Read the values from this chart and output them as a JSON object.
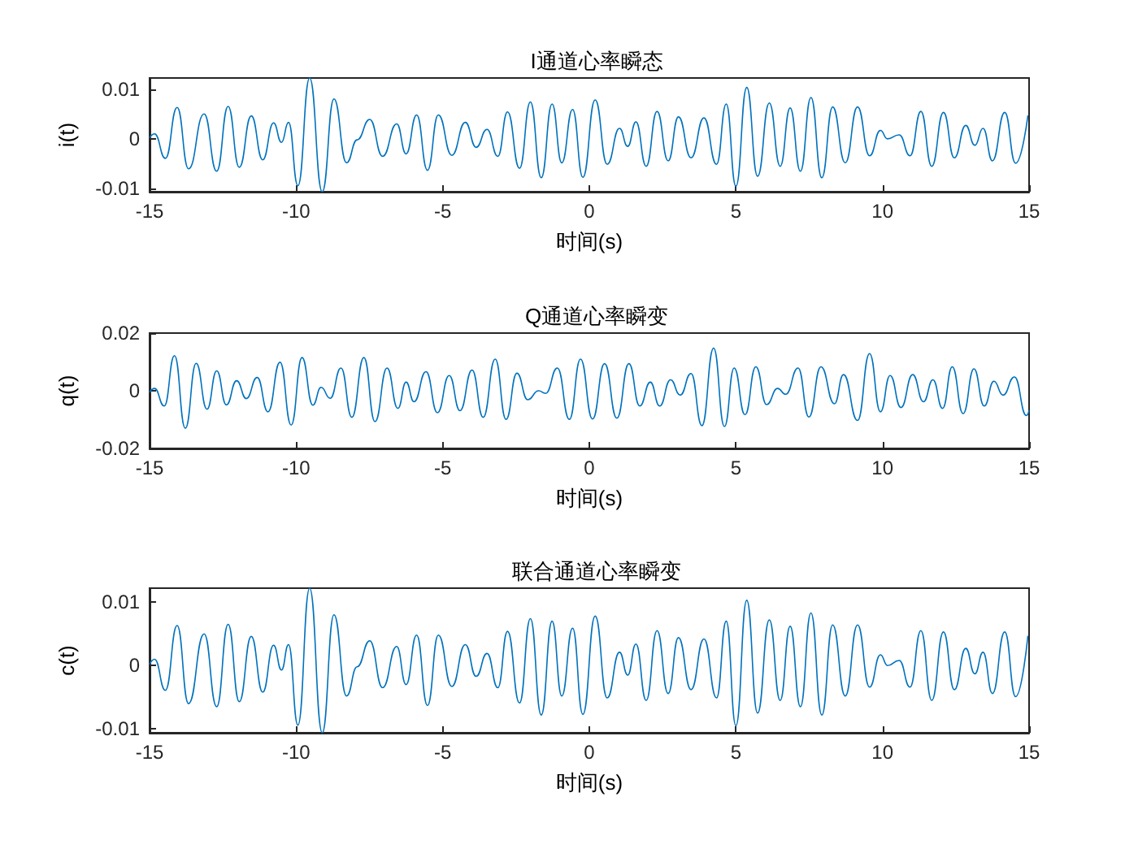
{
  "chart_data": [
    {
      "type": "line",
      "title": "I通道心率瞬态",
      "xlabel": "时间(s)",
      "ylabel": "i(t)",
      "xlim": [
        -15,
        15
      ],
      "xticks": [
        -15,
        -10,
        -5,
        0,
        5,
        10,
        15
      ],
      "ylim": [
        -0.0106,
        0.0122
      ],
      "yticks": [
        -0.01,
        0,
        0.01
      ],
      "grid": false,
      "series": [
        {
          "color": "#0072bd",
          "x": [
            -15.0,
            -14.83,
            -14.46,
            -14.06,
            -13.67,
            -13.14,
            -12.71,
            -12.32,
            -11.94,
            -11.53,
            -11.14,
            -10.77,
            -10.5,
            -10.26,
            -9.94,
            -9.54,
            -9.11,
            -8.71,
            -8.28,
            -7.92,
            -7.49,
            -7.05,
            -6.57,
            -6.25,
            -5.89,
            -5.52,
            -5.15,
            -4.69,
            -4.23,
            -3.86,
            -3.49,
            -3.12,
            -2.79,
            -2.38,
            -2.01,
            -1.64,
            -1.27,
            -0.94,
            -0.57,
            -0.22,
            0.2,
            0.61,
            1.03,
            1.31,
            1.59,
            1.94,
            2.31,
            2.69,
            3.04,
            3.47,
            3.91,
            4.34,
            4.67,
            5.0,
            5.37,
            5.74,
            6.14,
            6.51,
            6.85,
            7.2,
            7.56,
            7.93,
            8.3,
            8.73,
            9.15,
            9.56,
            9.93,
            10.17,
            10.57,
            10.94,
            11.31,
            11.68,
            12.08,
            12.45,
            12.84,
            13.15,
            13.43,
            13.75,
            14.17,
            14.54,
            14.96
          ],
          "values": [
            0.0002,
            0.001,
            -0.0039,
            0.0063,
            -0.006,
            0.005,
            -0.0065,
            0.0065,
            -0.0057,
            0.0046,
            -0.0042,
            0.0032,
            -0.0007,
            0.0033,
            -0.0094,
            0.0122,
            -0.0106,
            0.008,
            -0.0048,
            -0.0002,
            0.0039,
            -0.0035,
            0.003,
            -0.003,
            0.0048,
            -0.0063,
            0.0048,
            -0.0033,
            0.0033,
            -0.0017,
            0.0019,
            -0.0035,
            0.0054,
            -0.0059,
            0.0074,
            -0.0078,
            0.007,
            -0.0048,
            0.0059,
            -0.0077,
            0.0078,
            -0.0051,
            0.0021,
            -0.0015,
            0.0034,
            -0.0055,
            0.0055,
            -0.0044,
            0.0044,
            -0.0038,
            0.0042,
            -0.0051,
            0.007,
            -0.0095,
            0.0103,
            -0.0075,
            0.0072,
            -0.0055,
            0.0062,
            -0.0065,
            0.0083,
            -0.0078,
            0.0064,
            -0.0048,
            0.0064,
            -0.0034,
            0.0017,
            0,
            0.0008,
            -0.0034,
            0.0055,
            -0.0055,
            0.0053,
            -0.0038,
            0.0027,
            -0.0013,
            0.0021,
            -0.0044,
            0.0053,
            -0.0049,
            0.0047
          ]
        }
      ]
    },
    {
      "type": "line",
      "title": "Q通道心率瞬变",
      "xlabel": "时间(s)",
      "ylabel": "q(t)",
      "xlim": [
        -15,
        15
      ],
      "xticks": [
        -15,
        -10,
        -5,
        0,
        5,
        10,
        15
      ],
      "ylim": [
        -0.02,
        0.02
      ],
      "yticks": [
        -0.02,
        0,
        0.02
      ],
      "grid": false,
      "series": [
        {
          "color": "#0072bd",
          "x": [
            -15.0,
            -14.83,
            -14.5,
            -14.15,
            -13.78,
            -13.41,
            -13.04,
            -12.71,
            -12.38,
            -12.03,
            -11.7,
            -11.33,
            -10.96,
            -10.55,
            -10.17,
            -9.8,
            -9.43,
            -9.15,
            -8.84,
            -8.47,
            -8.1,
            -7.69,
            -7.31,
            -6.9,
            -6.53,
            -6.25,
            -5.98,
            -5.57,
            -5.18,
            -4.78,
            -4.41,
            -4.0,
            -3.62,
            -3.21,
            -2.84,
            -2.47,
            -2.1,
            -1.73,
            -1.49,
            -1.09,
            -0.68,
            -0.3,
            0.11,
            0.52,
            0.94,
            1.35,
            1.72,
            2.08,
            2.4,
            2.77,
            3.1,
            3.47,
            3.84,
            4.24,
            4.61,
            4.94,
            5.31,
            5.68,
            6.05,
            6.42,
            6.7,
            7.12,
            7.49,
            7.9,
            8.36,
            8.67,
            9.15,
            9.56,
            9.93,
            10.26,
            10.63,
            11.03,
            11.4,
            11.72,
            12.05,
            12.38,
            12.75,
            13.12,
            13.47,
            13.8,
            14.11,
            14.5,
            14.91,
            15.0
          ],
          "values": [
            -0.0005,
            0.0008,
            -0.0053,
            0.0122,
            -0.013,
            0.0095,
            -0.0064,
            0.0069,
            -0.0049,
            0.0035,
            -0.0027,
            0.0046,
            -0.0073,
            0.0099,
            -0.0119,
            0.0115,
            -0.005,
            0.0012,
            -0.0026,
            0.0079,
            -0.0092,
            0.0115,
            -0.0107,
            0.0079,
            -0.0061,
            0.003,
            -0.0038,
            0.0066,
            -0.0076,
            0.0053,
            -0.0069,
            0.0072,
            -0.0092,
            0.011,
            -0.0099,
            0.0061,
            -0.0031,
            0,
            -0.0009,
            0.0079,
            -0.0099,
            0.011,
            -0.0098,
            0.0094,
            -0.0095,
            0.0094,
            -0.0053,
            0.003,
            -0.0053,
            0.0038,
            -0.0015,
            0.006,
            -0.0121,
            0.0148,
            -0.0124,
            0.0079,
            -0.0083,
            0.0083,
            -0.0048,
            0.0008,
            -0.0012,
            0.0079,
            -0.0091,
            0.0083,
            -0.0045,
            0.0056,
            -0.0103,
            0.0129,
            -0.0073,
            0.0053,
            -0.0058,
            0.0056,
            -0.0038,
            0.0038,
            -0.0061,
            0.0083,
            -0.0079,
            0.0076,
            -0.0053,
            0.0033,
            -0.0015,
            0.0048,
            -0.0086,
            -0.0068
          ]
        }
      ]
    },
    {
      "type": "line",
      "title": "联合通道心率瞬变",
      "xlabel": "时间(s)",
      "ylabel": "c(t)",
      "xlim": [
        -15,
        15
      ],
      "xticks": [
        -15,
        -10,
        -5,
        0,
        5,
        10,
        15
      ],
      "ylim": [
        -0.0106,
        0.0122
      ],
      "yticks": [
        -0.01,
        0,
        0.01
      ],
      "grid": false,
      "series": [
        {
          "color": "#0072bd",
          "x": [
            -15.0,
            -14.83,
            -14.46,
            -14.06,
            -13.67,
            -13.14,
            -12.71,
            -12.32,
            -11.94,
            -11.53,
            -11.14,
            -10.77,
            -10.5,
            -10.26,
            -9.94,
            -9.54,
            -9.11,
            -8.71,
            -8.28,
            -7.92,
            -7.49,
            -7.05,
            -6.57,
            -6.25,
            -5.89,
            -5.52,
            -5.15,
            -4.69,
            -4.23,
            -3.86,
            -3.49,
            -3.12,
            -2.79,
            -2.38,
            -2.01,
            -1.64,
            -1.27,
            -0.94,
            -0.57,
            -0.22,
            0.2,
            0.61,
            1.03,
            1.31,
            1.59,
            1.94,
            2.31,
            2.69,
            3.04,
            3.47,
            3.91,
            4.34,
            4.67,
            5.0,
            5.37,
            5.74,
            6.14,
            6.51,
            6.85,
            7.2,
            7.56,
            7.93,
            8.3,
            8.73,
            9.15,
            9.56,
            9.93,
            10.17,
            10.57,
            10.94,
            11.31,
            11.68,
            12.08,
            12.45,
            12.84,
            13.15,
            13.43,
            13.75,
            14.17,
            14.54,
            14.96
          ],
          "values": [
            0.0002,
            0.001,
            -0.0039,
            0.0063,
            -0.006,
            0.005,
            -0.0065,
            0.0065,
            -0.0057,
            0.0046,
            -0.0042,
            0.0032,
            -0.0007,
            0.0033,
            -0.0094,
            0.0122,
            -0.0106,
            0.008,
            -0.0048,
            -0.0002,
            0.0039,
            -0.0035,
            0.003,
            -0.003,
            0.0048,
            -0.0063,
            0.0048,
            -0.0033,
            0.0033,
            -0.0017,
            0.0019,
            -0.0035,
            0.0054,
            -0.0059,
            0.0074,
            -0.0078,
            0.007,
            -0.0048,
            0.0059,
            -0.0077,
            0.0078,
            -0.0051,
            0.0021,
            -0.0015,
            0.0034,
            -0.0055,
            0.0055,
            -0.0044,
            0.0044,
            -0.0038,
            0.0042,
            -0.0051,
            0.007,
            -0.0095,
            0.0103,
            -0.0075,
            0.0072,
            -0.0055,
            0.0062,
            -0.0065,
            0.0083,
            -0.0078,
            0.0064,
            -0.0048,
            0.0064,
            -0.0034,
            0.0017,
            0,
            0.0008,
            -0.0034,
            0.0055,
            -0.0055,
            0.0053,
            -0.0038,
            0.0027,
            -0.0013,
            0.0021,
            -0.0044,
            0.0053,
            -0.0049,
            0.0047
          ]
        }
      ]
    }
  ]
}
